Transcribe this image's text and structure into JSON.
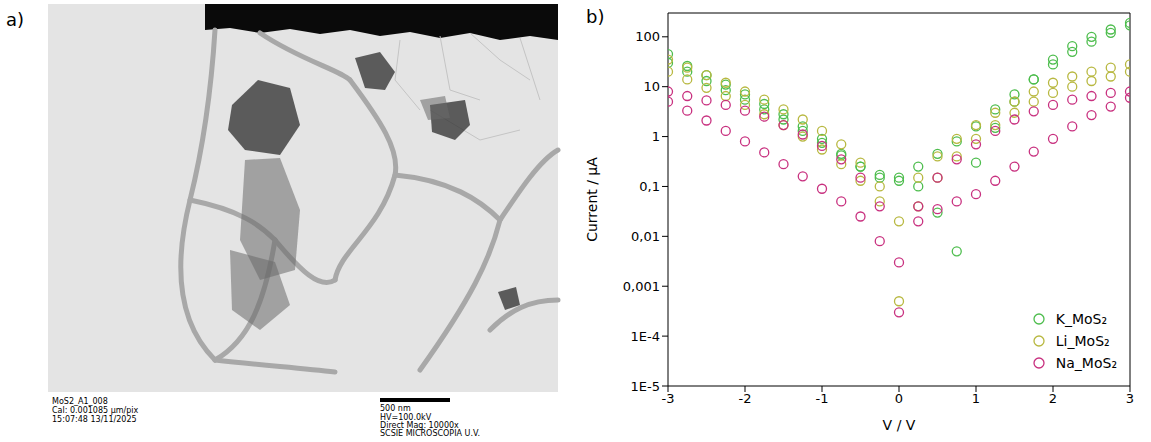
{
  "panel_labels": [
    "a)",
    "b)"
  ],
  "image": {
    "caption_lines": [
      "MoS2_A1_008",
      "Cal: 0.001085 µm/pix",
      "15:07:48 13/11/2025"
    ],
    "scale_bar": "500 nm",
    "info_lines": [
      "HV=100.0kV",
      "Direct Mag: 10000x",
      "SCSIE MICROSCOPIA U.V."
    ]
  },
  "chart_data": {
    "type": "scatter",
    "x_label": "V / V",
    "y_label": "Current / µA",
    "log": "y",
    "marker": "circle",
    "legend": "lower right",
    "xlim": [
      -3,
      3
    ],
    "xticks": [
      -3,
      -2,
      -1,
      0,
      1,
      2,
      3
    ],
    "ylim": [
      1e-05,
      300
    ],
    "yticks": [
      {
        "value": 1e-05,
        "label": "1E-5"
      },
      {
        "value": 0.0001,
        "label": "1E-4"
      },
      {
        "value": 0.001,
        "label": "0,001"
      },
      {
        "value": 0.01,
        "label": "0,01"
      },
      {
        "value": 0.1,
        "label": "0,1"
      },
      1,
      10,
      100
    ],
    "x": [
      -3,
      -2.75,
      -2.5,
      -2.25,
      -2,
      -1.75,
      -1.5,
      -1.25,
      -1,
      -0.75,
      -0.5,
      -0.25,
      0,
      0.25,
      0.5,
      0.75,
      1,
      1.25,
      1.5,
      1.75,
      2,
      2.25,
      2.5,
      2.75,
      3,
      3,
      2.75,
      2.5,
      2.25,
      2,
      1.75,
      1.5,
      1.25,
      1,
      0.75,
      0.5,
      0.25,
      0,
      -0.25,
      -0.5,
      -0.75,
      -1,
      -1.25,
      -1.5,
      -1.75,
      -2,
      -2.25,
      -2.5,
      -2.75,
      -3
    ],
    "series": [
      {
        "name": "K_MoS₂",
        "color": "#4dbd4d",
        "values": [
          30,
          20,
          13,
          8.5,
          5.5,
          3.5,
          2.2,
          1.3,
          0.75,
          0.42,
          0.25,
          0.17,
          0.13,
          0.1,
          0.03,
          0.005,
          0.3,
          1.5,
          5,
          14,
          35,
          65,
          100,
          140,
          190,
          170,
          120,
          80,
          50,
          28,
          14,
          7,
          3.5,
          1.6,
          0.8,
          0.45,
          0.25,
          0.15,
          0.15,
          0.25,
          0.45,
          0.9,
          1.6,
          2.8,
          4.5,
          7,
          11,
          17,
          26,
          45
        ]
      },
      {
        "name": "Li_MoS₂",
        "color": "#b8b840",
        "values": [
          20,
          14,
          9.5,
          6.5,
          4.3,
          2.8,
          1.7,
          1,
          0.55,
          0.28,
          0.13,
          0.05,
          0.0005,
          0.04,
          0.15,
          0.4,
          0.9,
          1.7,
          3,
          5,
          7.5,
          10,
          13,
          16,
          20,
          28,
          24,
          20,
          16,
          12,
          8,
          5,
          3,
          1.7,
          0.9,
          0.4,
          0.15,
          0.02,
          0.1,
          0.3,
          0.7,
          1.3,
          2.2,
          3.5,
          5.5,
          8,
          12,
          17,
          24,
          35
        ]
      },
      {
        "name": "Na_MoS₂",
        "color": "#c8307f",
        "values": [
          5,
          3.3,
          2.1,
          1.3,
          0.8,
          0.48,
          0.28,
          0.16,
          0.09,
          0.05,
          0.025,
          0.008,
          0.003,
          0.02,
          0.035,
          0.05,
          0.07,
          0.13,
          0.25,
          0.5,
          0.9,
          1.6,
          2.7,
          4,
          6,
          8,
          7.5,
          6.5,
          5.5,
          4.3,
          3.2,
          2.2,
          1.3,
          0.7,
          0.35,
          0.15,
          0.04,
          0.0003,
          0.04,
          0.15,
          0.35,
          0.65,
          1.1,
          1.7,
          2.5,
          3.3,
          4.3,
          5.3,
          6.5,
          8
        ]
      }
    ]
  }
}
